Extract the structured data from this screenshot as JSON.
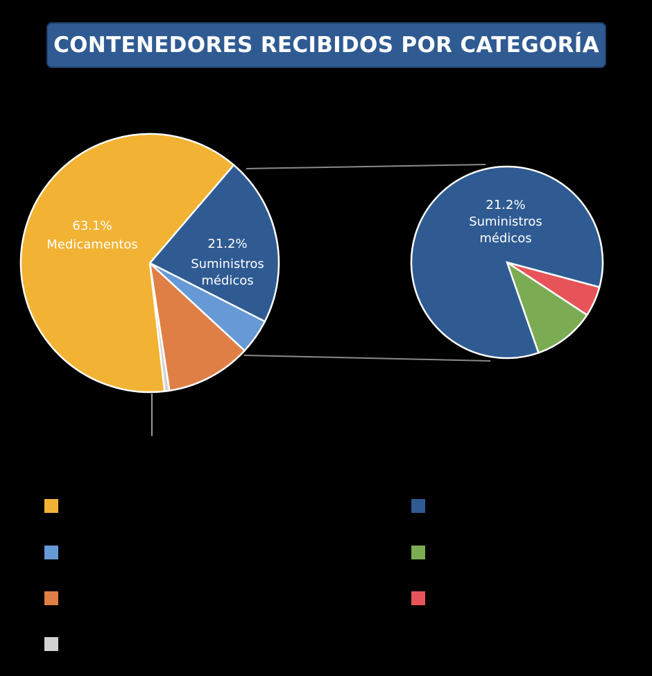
{
  "title": "CONTENEDORES RECIBIDOS POR CATEGORÍA",
  "chart_data": [
    {
      "type": "pie",
      "categories": [
        "Medicamentos",
        "Suministros médicos",
        "",
        "",
        ""
      ],
      "values": [
        63.1,
        21.2,
        4.4,
        10.7,
        0.6
      ],
      "colors": [
        "#f2b233",
        "#2f5b92",
        "#6699d6",
        "#e07f45",
        "#d3d3d3"
      ],
      "data_labels": [
        {
          "percent": "63.1%",
          "name": "Medicamentos"
        },
        {
          "percent": "21.2%",
          "name": "Suministros médicos",
          "line1": "Suministros",
          "line2": "médicos"
        },
        null,
        null,
        null
      ]
    },
    {
      "type": "pie",
      "title_label": {
        "percent": "21.2%",
        "line1": "Suministros",
        "line2": "médicos"
      },
      "values": [
        84.5,
        10.4,
        5.1
      ],
      "colors": [
        "#2f5b92",
        "#7bab52",
        "#e65459"
      ]
    }
  ],
  "legend": [
    {
      "color": "#f2b233"
    },
    {
      "color": "#2f5b92"
    },
    {
      "color": "#6699d6"
    },
    {
      "color": "#7bab52"
    },
    {
      "color": "#e07f45"
    },
    {
      "color": "#e65459"
    },
    {
      "color": "#d3d3d3"
    }
  ]
}
